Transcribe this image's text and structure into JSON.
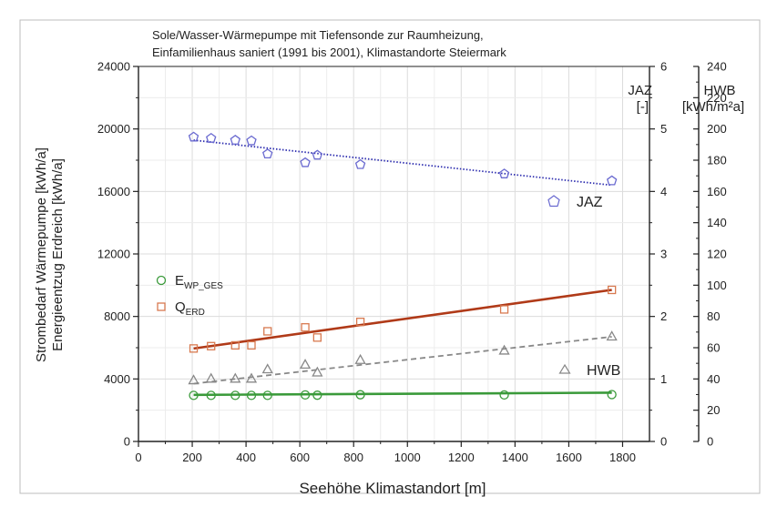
{
  "chart_data": {
    "type": "scatter",
    "title_lines": [
      "Sole/Wasser-Wärmepumpe mit Tiefensonde zur Raumheizung,",
      "Einfamilienhaus saniert (1991 bis 2001), Klimastandorte Steiermark"
    ],
    "xlabel": "Seehöhe Klimastandort [m]",
    "ylabel_lines": [
      "Strombedarf Wärmepumpe [kWh/a]",
      "Energieentzug Erdreich [kWh/a]"
    ],
    "xlim": [
      0,
      1900
    ],
    "x_ticks": [
      0,
      200,
      400,
      600,
      800,
      1000,
      1200,
      1400,
      1600,
      1800
    ],
    "ylim": [
      0,
      24000
    ],
    "y_ticks": [
      0,
      4000,
      8000,
      12000,
      16000,
      20000,
      24000
    ],
    "jaz_axis": {
      "label_lines": [
        "JAZ",
        "[-]"
      ],
      "lim": [
        0,
        6
      ],
      "ticks": [
        0,
        1,
        2,
        3,
        4,
        5,
        6
      ]
    },
    "hwb_axis": {
      "label_lines": [
        "HWB",
        "[kWh/m²a]"
      ],
      "lim": [
        0,
        240
      ],
      "ticks": [
        0,
        20,
        40,
        60,
        80,
        100,
        120,
        140,
        160,
        180,
        200,
        220,
        240
      ]
    },
    "grid": true,
    "series": [
      {
        "name": "E",
        "name_sub": "WP_GES",
        "axis": "left",
        "marker": "circle",
        "color": "#3a9a3a",
        "x": [
          205,
          270,
          360,
          420,
          480,
          620,
          665,
          825,
          1360,
          1760
        ],
        "y": [
          2950,
          2950,
          2950,
          2950,
          2950,
          2980,
          2960,
          2990,
          2980,
          3000
        ],
        "fit": {
          "style": "solid",
          "x": [
            205,
            1760
          ],
          "y": [
            2980,
            3120
          ]
        }
      },
      {
        "name": "Q",
        "name_sub": "ERD",
        "axis": "left",
        "marker": "square",
        "color": "#d87a50",
        "x": [
          205,
          270,
          360,
          420,
          480,
          620,
          665,
          825,
          1360,
          1760
        ],
        "y": [
          5950,
          6100,
          6150,
          6150,
          7050,
          7300,
          6650,
          7650,
          8450,
          9700
        ],
        "fit": {
          "style": "solid",
          "color": "#b03a18",
          "x": [
            205,
            1760
          ],
          "y": [
            5950,
            9700
          ]
        }
      },
      {
        "name": "JAZ",
        "axis": "jaz",
        "marker": "pentagon",
        "color": "#6a6ad0",
        "x": [
          205,
          270,
          360,
          420,
          480,
          620,
          665,
          825,
          1360,
          1760
        ],
        "y": [
          4.87,
          4.85,
          4.82,
          4.81,
          4.6,
          4.46,
          4.58,
          4.43,
          4.28,
          4.17
        ],
        "fit": {
          "style": "dotted",
          "color": "#3030b0",
          "x": [
            205,
            1760
          ],
          "y": [
            4.82,
            4.1
          ]
        }
      },
      {
        "name": "HWB",
        "axis": "hwb",
        "marker": "triangle",
        "color": "#888888",
        "x": [
          205,
          270,
          360,
          420,
          480,
          620,
          665,
          825,
          1360,
          1760
        ],
        "y": [
          39,
          40,
          40,
          40,
          46,
          49,
          44,
          52,
          58,
          67
        ],
        "fit": {
          "style": "dashed",
          "color": "#888888",
          "x": [
            205,
            1760
          ],
          "y": [
            37,
            67
          ]
        }
      }
    ],
    "labels": {
      "jaz": "JAZ",
      "hwb": "HWB"
    }
  }
}
